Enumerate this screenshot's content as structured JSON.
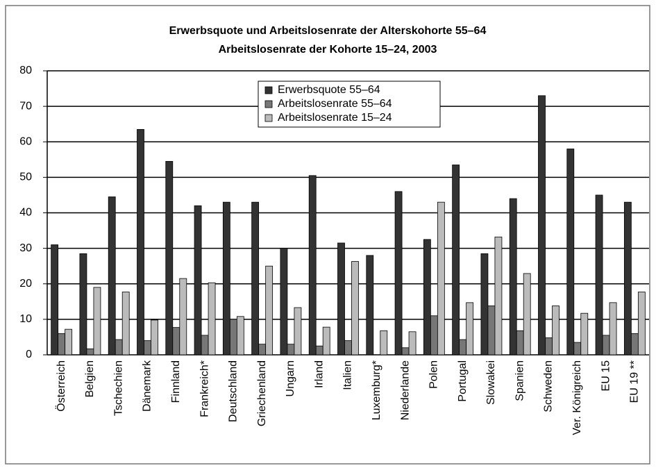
{
  "chart_data": {
    "type": "bar",
    "title": "Erwerbsquote und Arbeitslosenrate der Alterskohorte 55–64",
    "subtitle": "Arbeitslosenrate der Kohorte 15–24, 2003",
    "categories": [
      "Österreich",
      "Belgien",
      "Tschechien",
      "Dänemark",
      "Finnland",
      "Frankreich*",
      "Deutschland",
      "Griechenland",
      "Ungarn",
      "Irland",
      "Italien",
      "Luxemburg*",
      "Niederlande",
      "Polen",
      "Portugal",
      "Slowakei",
      "Spanien",
      "Schweden",
      "Ver. Königreich",
      "EU 15",
      "EU 19 **"
    ],
    "series": [
      {
        "name": "Erwerbsquote 55–64",
        "color": "#333333",
        "values": [
          31,
          28.5,
          44.5,
          63.5,
          54.5,
          42,
          43,
          43,
          30,
          50.5,
          31.5,
          28,
          46,
          32.5,
          53.5,
          28.5,
          44,
          73,
          58,
          45,
          43
        ]
      },
      {
        "name": "Arbeitslosenrate 55–64",
        "color": "#777777",
        "values": [
          6,
          1.7,
          4.3,
          4,
          7.7,
          5.5,
          10,
          3,
          3,
          2.5,
          4,
          null,
          2,
          11,
          4.3,
          13.8,
          6.8,
          4.8,
          3.5,
          5.5,
          6
        ]
      },
      {
        "name": "Arbeitslosenrate 15–24",
        "color": "#bbbbbb",
        "values": [
          7.2,
          19,
          17.7,
          9.8,
          21.5,
          20.3,
          10.8,
          25,
          13.3,
          7.8,
          26.3,
          6.8,
          6.5,
          43,
          14.7,
          33.2,
          22.9,
          13.8,
          11.7,
          14.7,
          17.7
        ]
      }
    ],
    "ylim": [
      0,
      80
    ],
    "yticks": [
      0,
      10,
      20,
      30,
      40,
      50,
      60,
      70,
      80
    ],
    "grid": true,
    "legend": "top"
  }
}
